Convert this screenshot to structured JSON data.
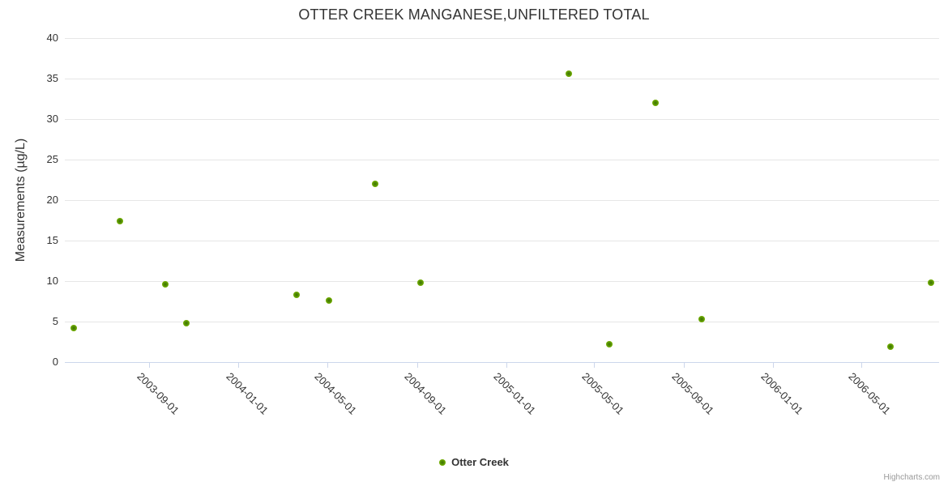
{
  "title": "OTTER CREEK MANGANESE,UNFILTERED TOTAL",
  "legend": {
    "series_label": "Otter Creek"
  },
  "credits": "Highcharts.com",
  "colors": {
    "marker": "#77b300",
    "marker_center": "#3c7000",
    "text": "#333333",
    "gridline": "#e6e6e6",
    "axis_line": "#ccd6eb",
    "credits_text": "#999999"
  },
  "chart_data": {
    "type": "scatter",
    "title": "OTTER CREEK MANGANESE,UNFILTERED TOTAL",
    "xlabel": "",
    "ylabel": "Measurements (µg/L)",
    "legend_position": "bottom-center",
    "grid": "horizontal-only",
    "ylim": [
      0,
      40
    ],
    "y_ticks": [
      0,
      5,
      10,
      15,
      20,
      25,
      30,
      35,
      40
    ],
    "xlim": [
      "2003-05-08",
      "2006-08-15"
    ],
    "x_ticks": [
      "2003-09-01",
      "2004-01-01",
      "2004-05-01",
      "2004-09-01",
      "2005-01-01",
      "2005-05-01",
      "2005-09-01",
      "2006-01-01",
      "2006-05-01"
    ],
    "series": [
      {
        "name": "Otter Creek",
        "color": "#77b300",
        "points": [
          {
            "x": "2003-05-20",
            "y": 4.2
          },
          {
            "x": "2003-07-22",
            "y": 17.4
          },
          {
            "x": "2003-09-22",
            "y": 9.6
          },
          {
            "x": "2003-10-21",
            "y": 4.8
          },
          {
            "x": "2004-03-20",
            "y": 8.3
          },
          {
            "x": "2004-05-03",
            "y": 7.6
          },
          {
            "x": "2004-07-05",
            "y": 22.0
          },
          {
            "x": "2004-09-05",
            "y": 9.8
          },
          {
            "x": "2005-03-27",
            "y": 35.6
          },
          {
            "x": "2005-05-21",
            "y": 2.2
          },
          {
            "x": "2005-07-23",
            "y": 32.0
          },
          {
            "x": "2005-09-25",
            "y": 5.3
          },
          {
            "x": "2006-06-10",
            "y": 1.9
          },
          {
            "x": "2006-08-04",
            "y": 9.8
          }
        ]
      }
    ]
  }
}
